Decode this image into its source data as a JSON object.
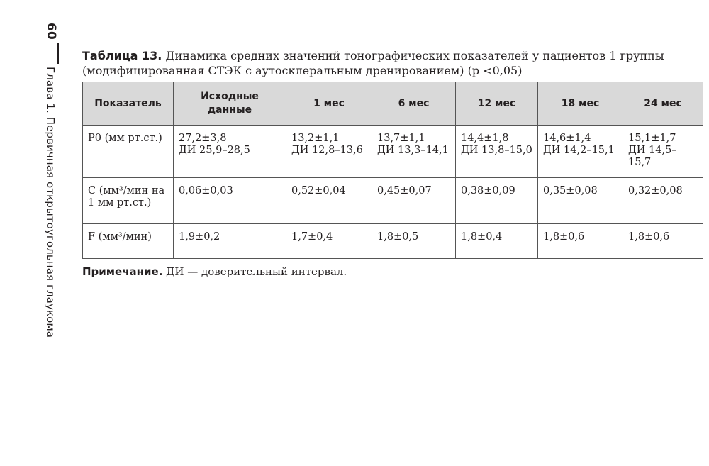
{
  "page": {
    "number": "60",
    "chapter": "Глава 1. Первичная открытоугольная глаукома"
  },
  "caption": {
    "label": "Таблица 13.",
    "text": " Динамика средних значений тонографических показателей  у пациентов 1 группы (модифицированная СТЭК с аутосклеральным дренированием) (p <0,05)"
  },
  "table": {
    "headers": [
      "Показатель",
      "Исходные данные",
      "1 мес",
      "6 мес",
      "12 мес",
      "18 мес",
      "24 мес"
    ],
    "rows": [
      [
        "P0 (мм рт.ст.)",
        "27,2±3,8\nДИ 25,9–28,5",
        "13,2±1,1\nДИ 12,8–13,6",
        "13,7±1,1\nДИ 13,3–14,1",
        "14,4±1,8\nДИ 13,8–15,0",
        "14,6±1,4\nДИ 14,2–15,1",
        "15,1±1,7\nДИ 14,5–15,7"
      ],
      [
        "C (мм³/мин на 1 мм рт.ст.)",
        "0,06±0,03",
        "0,52±0,04",
        "0,45±0,07",
        "0,38±0,09",
        "0,35±0,08",
        "0,32±0,08"
      ],
      [
        "F (мм³/мин)",
        "1,9±0,2",
        "1,7±0,4",
        "1,8±0,5",
        "1,8±0,4",
        "1,8±0,6",
        "1,8±0,6"
      ]
    ]
  },
  "note": {
    "label": "Примечание.",
    "text": " ДИ — доверительный интервал."
  }
}
